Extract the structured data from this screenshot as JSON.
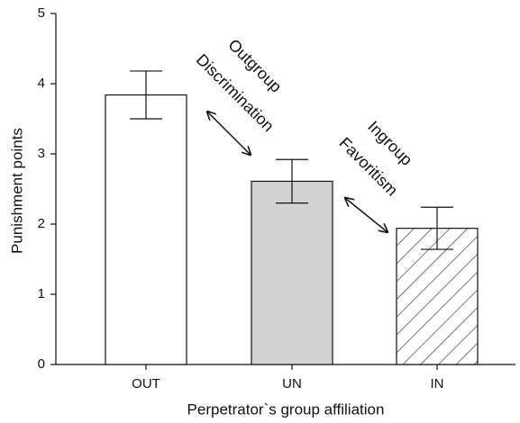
{
  "chart_data": {
    "type": "bar",
    "xlabel": "Perpetrator`s group affiliation",
    "ylabel": "Punishment points",
    "categories": [
      "OUT",
      "UN",
      "IN"
    ],
    "values": [
      3.84,
      2.61,
      1.94
    ],
    "errors": [
      0.34,
      0.31,
      0.3
    ],
    "colors": [
      "#ffffff",
      "#d3d3d3",
      "#ffffff"
    ],
    "hatch": [
      false,
      false,
      true
    ],
    "ylim": [
      0,
      5
    ],
    "yticks": [
      0,
      1,
      2,
      3,
      4,
      5
    ],
    "annotations": [
      [
        "Outgroup",
        "Discrimination"
      ],
      [
        "Ingroup",
        "Favoritism"
      ]
    ]
  }
}
